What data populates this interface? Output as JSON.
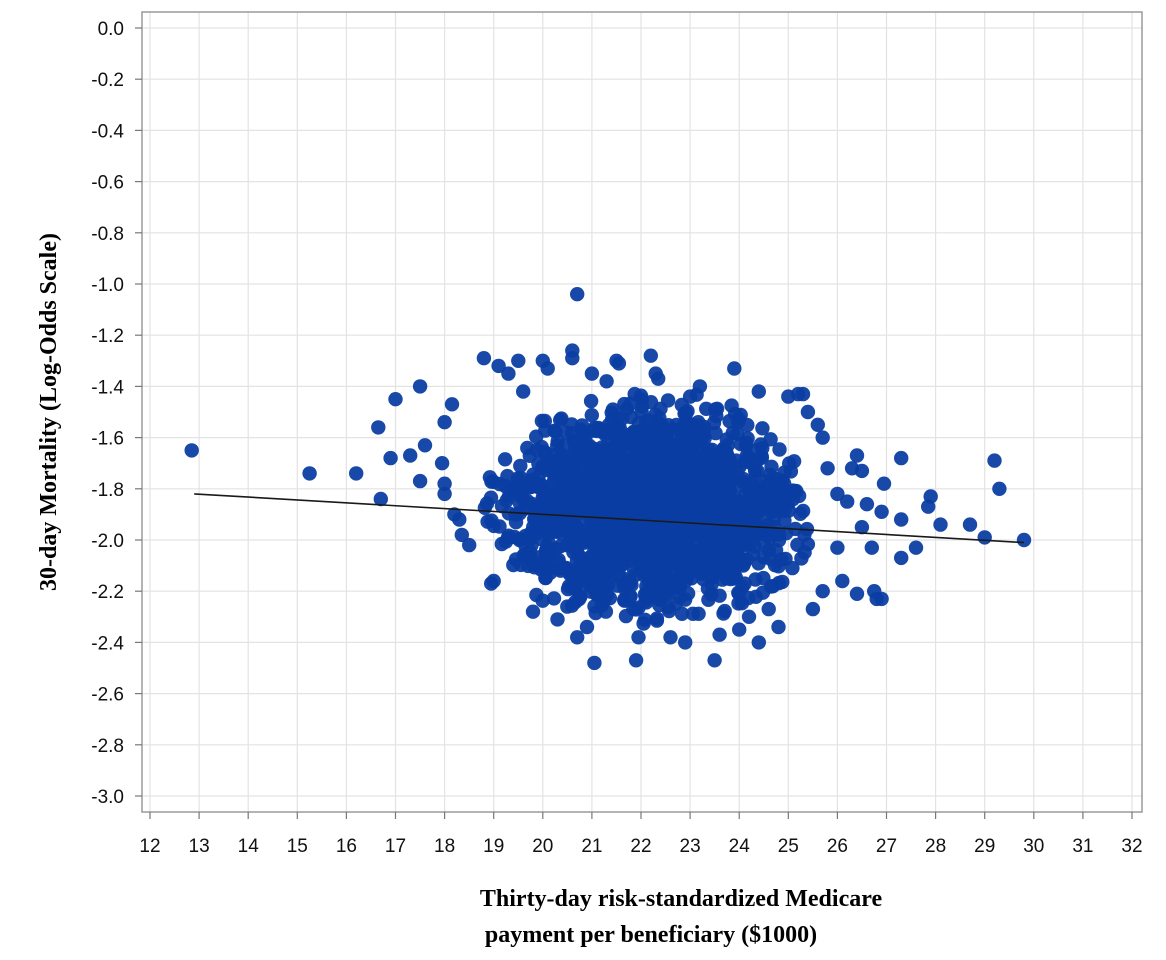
{
  "chart_data": {
    "type": "scatter",
    "title": "",
    "xlabel_lines": [
      "Thirty-day risk-standardized Medicare",
      "payment per beneficiary ($1000)"
    ],
    "ylabel": "30-day Mortality (Log-Odds Scale)",
    "xlim": [
      12,
      32
    ],
    "ylim": [
      -3.0,
      0.0
    ],
    "x_ticks": [
      "12",
      "13",
      "14",
      "15",
      "16",
      "17",
      "18",
      "19",
      "20",
      "21",
      "22",
      "23",
      "24",
      "25",
      "26",
      "27",
      "28",
      "29",
      "30",
      "31",
      "32"
    ],
    "y_ticks": [
      "0.0",
      "-0.2",
      "-0.4",
      "-0.6",
      "-0.8",
      "-1.0",
      "-1.2",
      "-1.4",
      "-1.6",
      "-1.8",
      "-2.0",
      "-2.2",
      "-2.4",
      "-2.6",
      "-2.8",
      "-3.0"
    ],
    "grid": true,
    "legend": "none",
    "point_color": "#0b3ea3",
    "line_color": "#1a1a1a",
    "trend_line": {
      "x": [
        12.9,
        29.8
      ],
      "y": [
        -1.82,
        -2.01
      ]
    },
    "cluster": {
      "approx_count": 2000,
      "x_center": 22.2,
      "x_sd": 1.5,
      "y_center": -1.88,
      "y_sd": 0.19,
      "x_range": [
        18.2,
        26.6
      ],
      "y_range": [
        -2.45,
        -1.28
      ]
    },
    "points": [
      {
        "x": 12.85,
        "y": -1.65
      },
      {
        "x": 15.25,
        "y": -1.74
      },
      {
        "x": 16.2,
        "y": -1.74
      },
      {
        "x": 16.7,
        "y": -1.84
      },
      {
        "x": 16.9,
        "y": -1.68
      },
      {
        "x": 17.0,
        "y": -1.45
      },
      {
        "x": 17.5,
        "y": -1.4
      },
      {
        "x": 16.65,
        "y": -1.56
      },
      {
        "x": 17.5,
        "y": -1.77
      },
      {
        "x": 17.3,
        "y": -1.67
      },
      {
        "x": 17.6,
        "y": -1.63
      },
      {
        "x": 17.95,
        "y": -1.7
      },
      {
        "x": 18.0,
        "y": -1.54
      },
      {
        "x": 18.15,
        "y": -1.47
      },
      {
        "x": 18.0,
        "y": -1.82
      },
      {
        "x": 18.0,
        "y": -1.78
      },
      {
        "x": 18.2,
        "y": -1.9
      },
      {
        "x": 18.3,
        "y": -1.92
      },
      {
        "x": 18.35,
        "y": -1.98
      },
      {
        "x": 18.5,
        "y": -2.02
      },
      {
        "x": 18.8,
        "y": -1.29
      },
      {
        "x": 18.95,
        "y": -2.17
      },
      {
        "x": 19.0,
        "y": -2.16
      },
      {
        "x": 19.1,
        "y": -1.32
      },
      {
        "x": 19.3,
        "y": -1.35
      },
      {
        "x": 19.5,
        "y": -1.3
      },
      {
        "x": 19.6,
        "y": -1.42
      },
      {
        "x": 19.8,
        "y": -2.28
      },
      {
        "x": 20.0,
        "y": -1.3
      },
      {
        "x": 20.1,
        "y": -1.33
      },
      {
        "x": 20.3,
        "y": -2.31
      },
      {
        "x": 20.5,
        "y": -2.26
      },
      {
        "x": 20.6,
        "y": -1.26
      },
      {
        "x": 20.6,
        "y": -1.29
      },
      {
        "x": 20.7,
        "y": -1.04
      },
      {
        "x": 20.7,
        "y": -2.38
      },
      {
        "x": 20.9,
        "y": -2.34
      },
      {
        "x": 21.05,
        "y": -2.48
      },
      {
        "x": 21.0,
        "y": -1.35
      },
      {
        "x": 21.3,
        "y": -1.38
      },
      {
        "x": 21.5,
        "y": -1.3
      },
      {
        "x": 21.55,
        "y": -1.31
      },
      {
        "x": 21.9,
        "y": -2.47
      },
      {
        "x": 21.95,
        "y": -2.38
      },
      {
        "x": 22.2,
        "y": -1.28
      },
      {
        "x": 22.3,
        "y": -1.35
      },
      {
        "x": 22.35,
        "y": -1.37
      },
      {
        "x": 22.6,
        "y": -2.38
      },
      {
        "x": 22.9,
        "y": -2.4
      },
      {
        "x": 23.0,
        "y": -1.44
      },
      {
        "x": 23.2,
        "y": -1.4
      },
      {
        "x": 23.5,
        "y": -2.47
      },
      {
        "x": 23.6,
        "y": -2.37
      },
      {
        "x": 23.9,
        "y": -1.33
      },
      {
        "x": 24.0,
        "y": -2.35
      },
      {
        "x": 24.2,
        "y": -2.3
      },
      {
        "x": 24.4,
        "y": -2.4
      },
      {
        "x": 24.4,
        "y": -1.42
      },
      {
        "x": 24.6,
        "y": -2.27
      },
      {
        "x": 24.8,
        "y": -2.34
      },
      {
        "x": 25.0,
        "y": -1.44
      },
      {
        "x": 25.2,
        "y": -1.43
      },
      {
        "x": 25.3,
        "y": -1.43
      },
      {
        "x": 25.4,
        "y": -1.5
      },
      {
        "x": 25.5,
        "y": -2.27
      },
      {
        "x": 25.6,
        "y": -1.55
      },
      {
        "x": 25.7,
        "y": -1.6
      },
      {
        "x": 25.7,
        "y": -2.2
      },
      {
        "x": 25.8,
        "y": -1.72
      },
      {
        "x": 26.0,
        "y": -2.03
      },
      {
        "x": 26.0,
        "y": -1.82
      },
      {
        "x": 26.1,
        "y": -2.16
      },
      {
        "x": 26.2,
        "y": -1.85
      },
      {
        "x": 26.3,
        "y": -1.72
      },
      {
        "x": 26.4,
        "y": -1.67
      },
      {
        "x": 26.5,
        "y": -1.95
      },
      {
        "x": 26.5,
        "y": -1.73
      },
      {
        "x": 26.4,
        "y": -2.21
      },
      {
        "x": 26.6,
        "y": -1.86
      },
      {
        "x": 26.7,
        "y": -2.03
      },
      {
        "x": 26.75,
        "y": -2.2
      },
      {
        "x": 26.8,
        "y": -2.23
      },
      {
        "x": 26.9,
        "y": -2.23
      },
      {
        "x": 26.9,
        "y": -1.89
      },
      {
        "x": 26.95,
        "y": -1.78
      },
      {
        "x": 27.3,
        "y": -1.68
      },
      {
        "x": 27.3,
        "y": -1.92
      },
      {
        "x": 27.3,
        "y": -2.07
      },
      {
        "x": 27.6,
        "y": -2.03
      },
      {
        "x": 27.9,
        "y": -1.83
      },
      {
        "x": 27.85,
        "y": -1.87
      },
      {
        "x": 28.1,
        "y": -1.94
      },
      {
        "x": 28.7,
        "y": -1.94
      },
      {
        "x": 29.0,
        "y": -1.99
      },
      {
        "x": 29.2,
        "y": -1.69
      },
      {
        "x": 29.3,
        "y": -1.8
      },
      {
        "x": 29.8,
        "y": -2.0
      }
    ]
  }
}
